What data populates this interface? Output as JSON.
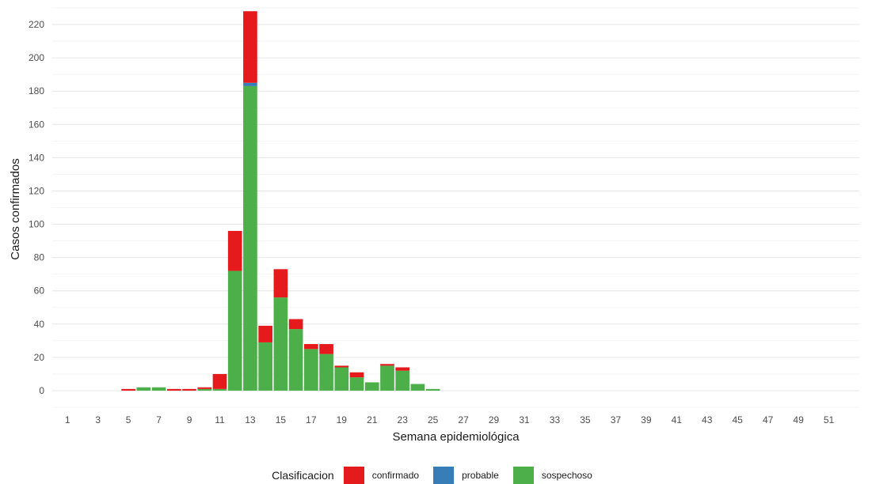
{
  "chart_data": {
    "type": "bar",
    "stacked": true,
    "title": "",
    "xlabel": "Semana epidemiológica",
    "ylabel": "Casos confirmados",
    "ylim": [
      -10,
      230
    ],
    "yticks": [
      0,
      20,
      40,
      60,
      80,
      100,
      120,
      140,
      160,
      180,
      200,
      220
    ],
    "xlim": [
      0,
      53
    ],
    "xticks": [
      1,
      3,
      5,
      7,
      9,
      11,
      13,
      15,
      17,
      19,
      21,
      23,
      25,
      27,
      29,
      31,
      33,
      35,
      37,
      39,
      41,
      43,
      45,
      47,
      49,
      51
    ],
    "grid": true,
    "legend_position": "bottom",
    "legend_title": "Clasificacion",
    "x": [
      5,
      6,
      7,
      8,
      9,
      10,
      11,
      12,
      13,
      14,
      15,
      16,
      17,
      18,
      19,
      20,
      21,
      22,
      23,
      24,
      25
    ],
    "series": [
      {
        "name": "sospechoso",
        "color": "#4daf4a",
        "values": [
          0,
          2,
          2,
          0,
          0,
          1,
          1,
          72,
          183,
          29,
          56,
          37,
          25,
          22,
          14,
          8,
          5,
          15,
          12,
          4,
          1
        ]
      },
      {
        "name": "probable",
        "color": "#377eb8",
        "values": [
          0,
          0,
          0,
          0,
          0,
          0,
          0,
          0,
          2,
          0,
          0,
          0,
          0,
          0,
          0,
          0,
          0,
          0,
          0,
          0,
          0
        ]
      },
      {
        "name": "confirmado",
        "color": "#e41a1c",
        "values": [
          1,
          0,
          0,
          1,
          1,
          1,
          9,
          24,
          43,
          10,
          17,
          6,
          3,
          6,
          1,
          3,
          0,
          1,
          2,
          0,
          0
        ]
      }
    ],
    "legend_order": [
      "confirmado",
      "probable",
      "sospechoso"
    ]
  }
}
